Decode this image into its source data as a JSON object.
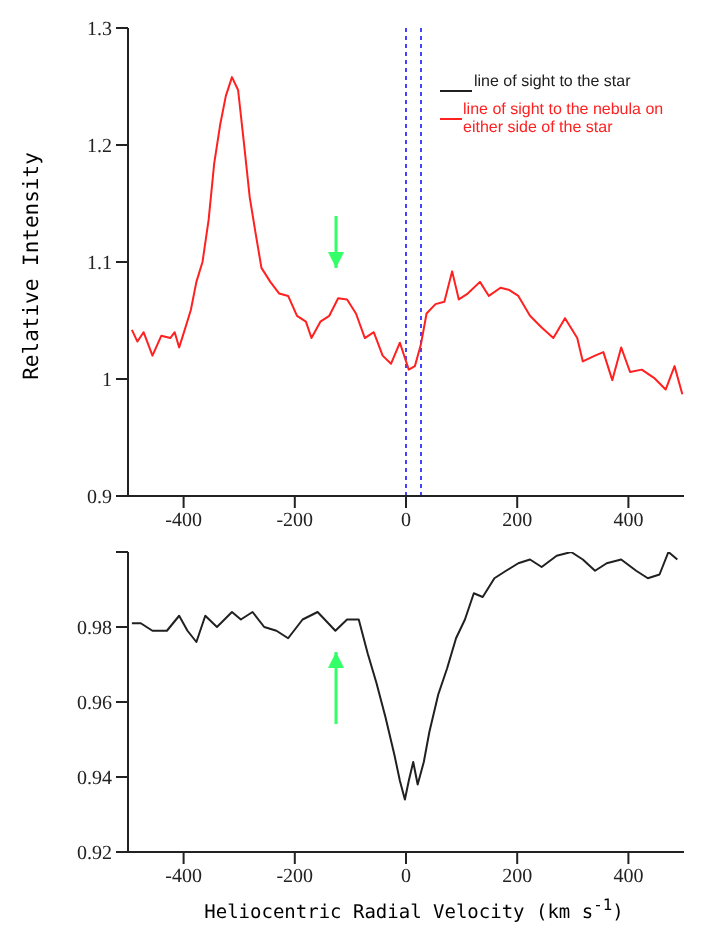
{
  "chart_data": [
    {
      "type": "line",
      "ylabel": "Relative Intensity",
      "xlim": [
        -500,
        500
      ],
      "xticks": [
        -400,
        -200,
        0,
        200,
        400
      ],
      "ylim": [
        0.9,
        1.3
      ],
      "yticks": [
        0.9,
        1,
        1.1,
        1.2,
        1.3
      ],
      "legend": "top right",
      "ref_lines": [
        {
          "axis": "x",
          "value": 0,
          "color": "#4444ff",
          "line_style": "dotted"
        },
        {
          "axis": "x",
          "value": 27,
          "color": "#4444ff",
          "line_style": "dotted"
        }
      ],
      "series": [
        {
          "name": "line of sight to the nebula on either side of the star",
          "color": "#ff2020",
          "x": [
            -493,
            -483,
            -472,
            -456,
            -440,
            -424,
            -416,
            -408,
            -398,
            -387,
            -377,
            -366,
            -355,
            -345,
            -334,
            -324,
            -313,
            -302,
            -292,
            -281,
            -271,
            -260,
            -244,
            -228,
            -212,
            -196,
            -180,
            -170,
            -154,
            -138,
            -122,
            -106,
            -90,
            -74,
            -58,
            -42,
            -27,
            -11,
            5,
            16,
            27,
            37,
            53,
            69,
            83,
            95,
            111,
            133,
            149,
            170,
            186,
            202,
            223,
            244,
            265,
            286,
            308,
            318,
            340,
            355,
            371,
            387,
            403,
            424,
            446,
            467,
            483,
            497
          ],
          "values": [
            1.042,
            1.032,
            1.04,
            1.02,
            1.037,
            1.035,
            1.04,
            1.027,
            1.042,
            1.059,
            1.083,
            1.1,
            1.136,
            1.184,
            1.218,
            1.242,
            1.258,
            1.247,
            1.204,
            1.155,
            1.126,
            1.095,
            1.083,
            1.073,
            1.071,
            1.054,
            1.049,
            1.035,
            1.049,
            1.054,
            1.069,
            1.068,
            1.056,
            1.035,
            1.04,
            1.02,
            1.013,
            1.031,
            1.008,
            1.011,
            1.03,
            1.056,
            1.064,
            1.066,
            1.092,
            1.068,
            1.073,
            1.083,
            1.071,
            1.078,
            1.076,
            1.071,
            1.054,
            1.044,
            1.035,
            1.052,
            1.035,
            1.015,
            1.02,
            1.023,
            0.999,
            1.027,
            1.006,
            1.008,
            1.001,
            0.991,
            1.011,
            0.987
          ]
        }
      ]
    },
    {
      "type": "line",
      "xlabel": "Heliocentric Radial Velocity (km s$^{-1}$)",
      "xlim": [
        -500,
        500
      ],
      "xticks": [
        -400,
        -200,
        0,
        200,
        400
      ],
      "ylim": [
        0.92,
        1.0
      ],
      "yticks": [
        0.92,
        0.94,
        0.96,
        0.98,
        {
          "value": 1.0,
          "label": null
        }
      ],
      "series": [
        {
          "name": "line of sight to the star",
          "color": "#202020",
          "x": [
            -493,
            -477,
            -456,
            -430,
            -408,
            -393,
            -377,
            -361,
            -340,
            -313,
            -297,
            -276,
            -255,
            -233,
            -212,
            -186,
            -159,
            -127,
            -106,
            -85,
            -69,
            -53,
            -37,
            -21,
            -11,
            -2,
            5,
            13,
            21,
            32,
            42,
            58,
            74,
            90,
            106,
            122,
            138,
            159,
            180,
            202,
            223,
            244,
            271,
            297,
            318,
            340,
            361,
            387,
            414,
            435,
            456,
            472,
            488
          ],
          "values": [
            0.981,
            0.981,
            0.979,
            0.979,
            0.983,
            0.979,
            0.976,
            0.983,
            0.98,
            0.984,
            0.982,
            0.984,
            0.98,
            0.979,
            0.977,
            0.982,
            0.984,
            0.979,
            0.982,
            0.982,
            0.973,
            0.965,
            0.956,
            0.946,
            0.939,
            0.934,
            0.939,
            0.944,
            0.938,
            0.944,
            0.952,
            0.962,
            0.969,
            0.977,
            0.982,
            0.989,
            0.988,
            0.993,
            0.995,
            0.997,
            0.998,
            0.996,
            0.999,
            1.0,
            0.998,
            0.995,
            0.997,
            0.998,
            0.995,
            0.993,
            0.994,
            1.0,
            0.998
          ]
        }
      ]
    }
  ]
}
